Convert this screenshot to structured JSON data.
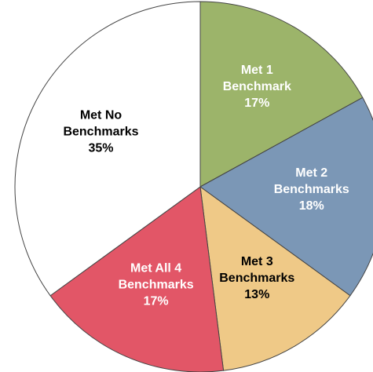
{
  "chart_data": {
    "type": "pie",
    "categories": [
      "Met 1 Benchmark",
      "Met 2 Benchmarks",
      "Met 3 Benchmarks",
      "Met All 4 Benchmarks",
      "Met No Benchmarks"
    ],
    "values": [
      17,
      18,
      13,
      17,
      35
    ],
    "value_labels": [
      "17%",
      "18%",
      "13%",
      "17%",
      "35%"
    ],
    "colors": [
      "#9cb46a",
      "#7b97b6",
      "#efc987",
      "#e25667",
      "#ffffff"
    ]
  }
}
